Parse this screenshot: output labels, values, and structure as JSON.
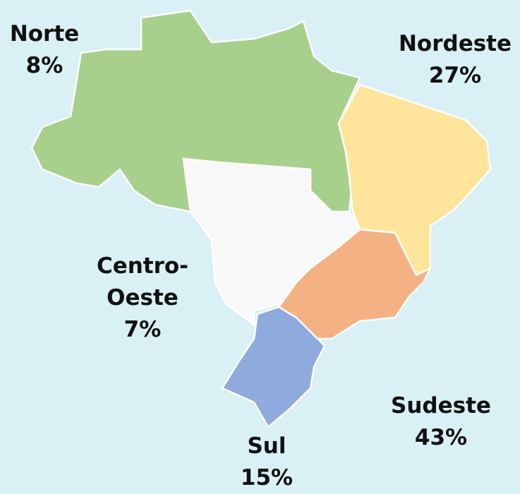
{
  "regions": [
    {
      "name": "Norte",
      "share": "8%",
      "color": "#a8d08d"
    },
    {
      "name": "Nordeste",
      "share": "27%",
      "color": "#ffe49b"
    },
    {
      "name": "Centro-Oeste",
      "share": "7%",
      "color": "#f8f8f8"
    },
    {
      "name": "Sudeste",
      "share": "43%",
      "color": "#f4b183"
    },
    {
      "name": "Sul",
      "share": "15%",
      "color": "#8faadc"
    }
  ]
}
